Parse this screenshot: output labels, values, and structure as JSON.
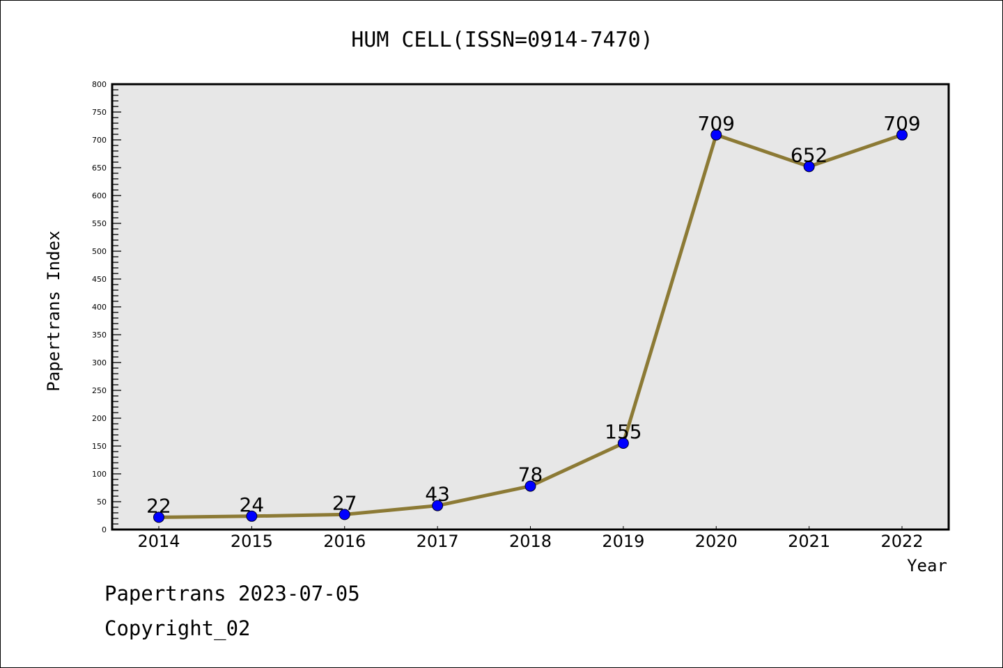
{
  "chart_data": {
    "type": "line",
    "title": "HUM CELL(ISSN=0914-7470)",
    "xlabel": "Year",
    "ylabel": "Papertrans Index",
    "categories": [
      "2014",
      "2015",
      "2016",
      "2017",
      "2018",
      "2019",
      "2020",
      "2021",
      "2022"
    ],
    "values": [
      22,
      24,
      27,
      43,
      78,
      155,
      709,
      652,
      709
    ],
    "ylim": [
      0,
      800
    ],
    "yticks": [
      0,
      50,
      100,
      150,
      200,
      250,
      300,
      350,
      400,
      450,
      500,
      550,
      600,
      650,
      700,
      750,
      800
    ],
    "grid": false,
    "colors": {
      "line": "#8c7a35",
      "marker": "#0000ff",
      "plot_bg": "#e7e7e7"
    }
  },
  "footer": {
    "date_line": "Papertrans 2023-07-05",
    "copyright": "Copyright_02"
  }
}
